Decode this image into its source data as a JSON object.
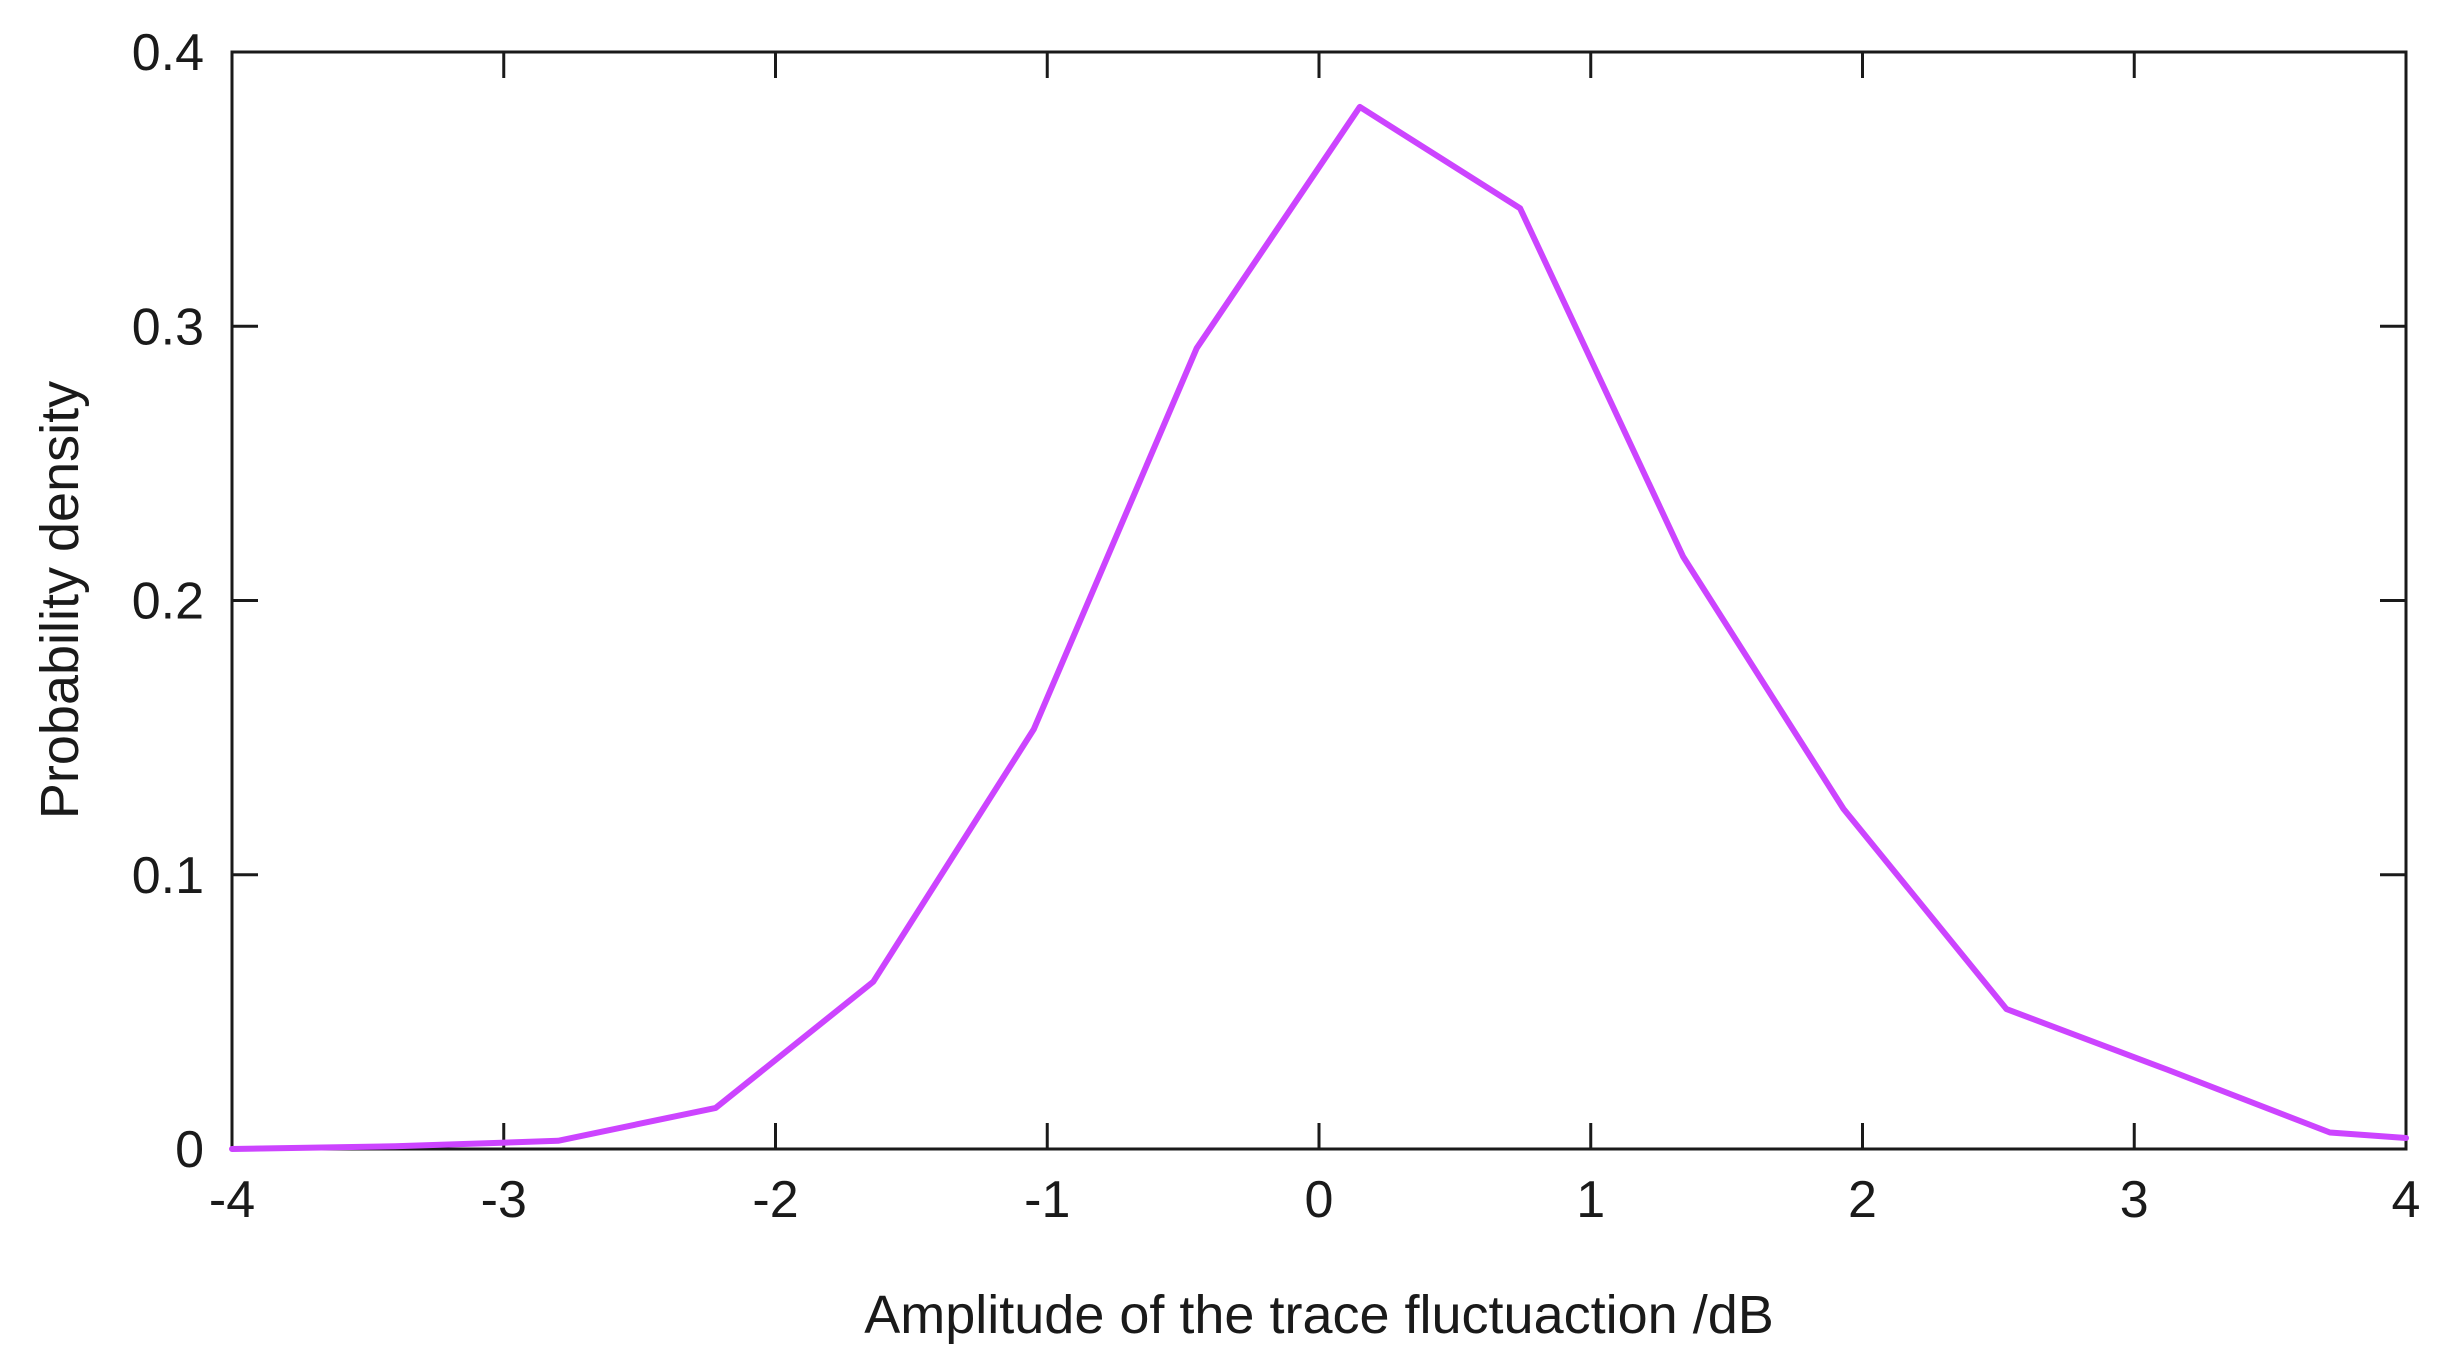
{
  "chart_data": {
    "type": "line",
    "title": "",
    "xlabel": "Amplitude of the trace fluctuaction /dB",
    "ylabel": "Probability density",
    "xlim": [
      -4,
      4
    ],
    "ylim": [
      0,
      0.4
    ],
    "xticks": [
      -4,
      -3,
      -2,
      -1,
      0,
      1,
      2,
      3,
      4
    ],
    "xtick_labels": [
      "-4",
      "-3",
      "-2",
      "-1",
      "0",
      "1",
      "2",
      "3",
      "4"
    ],
    "yticks": [
      0,
      0.1,
      0.2,
      0.3,
      0.4
    ],
    "ytick_labels": [
      "0",
      "0.1",
      "0.2",
      "0.3",
      "0.4"
    ],
    "grid": false,
    "legend": "none",
    "series": [
      {
        "color": "#cc44ff",
        "x": [
          -4.0,
          -3.4,
          -2.8,
          -2.22,
          -1.64,
          -1.05,
          -0.45,
          0.15,
          0.74,
          1.34,
          1.93,
          2.53,
          3.12,
          3.72,
          4.0
        ],
        "y": [
          0.0,
          0.001,
          0.003,
          0.015,
          0.061,
          0.153,
          0.292,
          0.38,
          0.343,
          0.216,
          0.124,
          0.051,
          0.029,
          0.006,
          0.004
        ]
      }
    ]
  }
}
